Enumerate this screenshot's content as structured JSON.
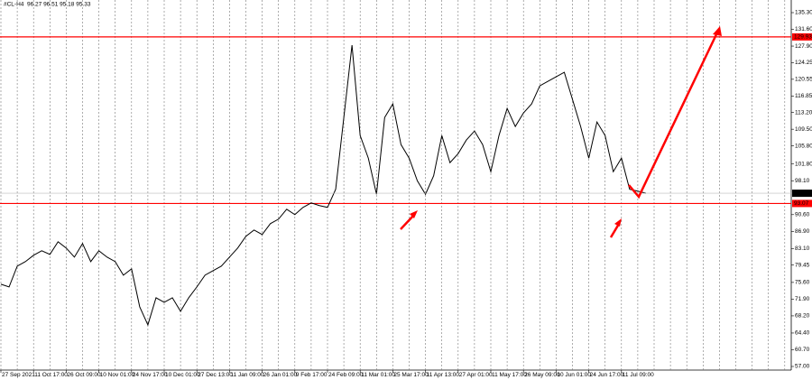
{
  "chart_data": {
    "type": "line",
    "title": "#CL-H4",
    "subtitle": "96.27 96.51 95.18 95.33",
    "categories": [
      "27 Sep 2021",
      null,
      null,
      null,
      "11 Oct 17:00",
      null,
      null,
      null,
      "26 Oct 09:00",
      null,
      null,
      null,
      "10 Nov 01:00",
      null,
      null,
      null,
      "24 Nov 17:00",
      null,
      null,
      null,
      "10 Dec 01:00",
      null,
      null,
      null,
      "27 Dec 13:00",
      null,
      null,
      null,
      "11 Jan 09:00",
      null,
      null,
      null,
      "26 Jan 01:00",
      null,
      null,
      null,
      "9 Feb 17:00",
      null,
      null,
      null,
      "24 Feb 09:00",
      null,
      null,
      null,
      "11 Mar 01:00",
      null,
      null,
      null,
      "25 Mar 17:00",
      null,
      null,
      null,
      "11 Apr 13:00",
      null,
      null,
      null,
      "27 Apr 01:00",
      null,
      null,
      null,
      "11 May 17:00",
      null,
      null,
      null,
      "26 May 09:00",
      null,
      null,
      null,
      "10 Jun 01:00",
      null,
      null,
      null,
      "24 Jun 17:00",
      null,
      null,
      null,
      "11 Jul 09:00",
      null,
      null,
      null,
      null,
      null,
      null,
      null,
      null,
      null,
      null,
      null,
      null,
      null,
      null,
      null,
      null,
      null,
      null,
      null,
      null
    ],
    "series": [
      {
        "name": "#CL",
        "color": "#000000",
        "values": [
          75.2,
          74.6,
          79.2,
          80.2,
          81.6,
          82.6,
          81.8,
          84.6,
          83.2,
          81.2,
          84.2,
          80.2,
          82.6,
          81.2,
          80.2,
          77.2,
          78.6,
          70.2,
          66.2,
          72.2,
          71.2,
          72.2,
          69.2,
          72.2,
          74.6,
          77.2,
          78.2,
          79.2,
          81.2,
          83.2,
          85.8,
          87.2,
          86.2,
          88.6,
          89.6,
          91.8,
          90.6,
          92.2,
          93.2,
          92.6,
          92.2,
          96.2,
          112.1,
          128.1,
          108.1,
          103.1,
          95.1,
          112.1,
          115.1,
          106.1,
          103.1,
          98.1,
          95.1,
          99.2,
          108.1,
          102.1,
          104.1,
          107.1,
          109.1,
          106.1,
          100.1,
          108.1,
          114.1,
          110.1,
          113.1,
          115.1,
          119.1,
          120.1,
          121.1,
          122.1,
          116.1,
          110.1,
          103.1,
          111.1,
          108.1,
          100.1,
          103.1,
          96.2,
          95.8,
          95.33,
          null,
          null,
          null,
          null,
          null,
          null,
          null,
          null,
          null,
          null,
          null,
          null,
          null,
          null,
          null,
          null,
          null
        ]
      }
    ],
    "last_price": 95.33,
    "hlines": [
      {
        "value": 129.93,
        "color": "#ff0000"
      },
      {
        "value": 93.07,
        "color": "#ff0000"
      }
    ],
    "ylim": [
      57.0,
      135.3
    ],
    "yticks": [
      {
        "value": 135.3,
        "label": "135.30"
      },
      {
        "value": 131.6,
        "label": "131.60"
      },
      {
        "value": 127.9,
        "label": "127.90"
      },
      {
        "value": 124.25,
        "label": "124.25"
      },
      {
        "value": 120.55,
        "label": "120.55"
      },
      {
        "value": 116.85,
        "label": "116.85"
      },
      {
        "value": 113.2,
        "label": "113.20"
      },
      {
        "value": 109.5,
        "label": "109.50"
      },
      {
        "value": 105.8,
        "label": "105.80"
      },
      {
        "value": 101.8,
        "label": "101.80"
      },
      {
        "value": 98.1,
        "label": "98.10"
      },
      {
        "value": 90.6,
        "label": "90.60"
      },
      {
        "value": 86.9,
        "label": "86.90"
      },
      {
        "value": 83.1,
        "label": "83.10"
      },
      {
        "value": 79.45,
        "label": "79.45"
      },
      {
        "value": 75.6,
        "label": "75.60"
      },
      {
        "value": 71.9,
        "label": "71.90"
      },
      {
        "value": 68.2,
        "label": "68.20"
      },
      {
        "value": 64.4,
        "label": "64.40"
      },
      {
        "value": 60.7,
        "label": "60.70"
      },
      {
        "value": 57.0,
        "label": "57.00"
      }
    ],
    "grid": true
  }
}
